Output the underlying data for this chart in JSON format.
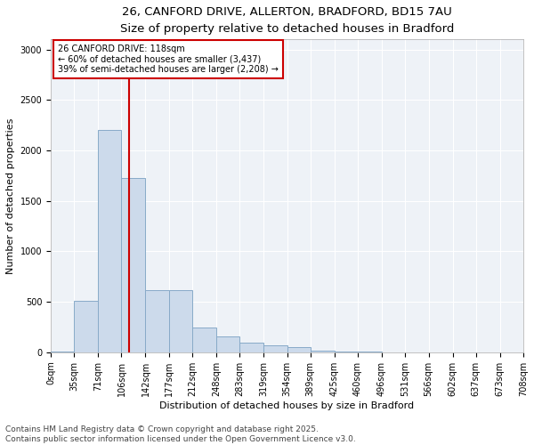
{
  "title_line1": "26, CANFORD DRIVE, ALLERTON, BRADFORD, BD15 7AU",
  "title_line2": "Size of property relative to detached houses in Bradford",
  "xlabel": "Distribution of detached houses by size in Bradford",
  "ylabel": "Number of detached properties",
  "bar_color": "#ccdaeb",
  "bar_edge_color": "#88aac8",
  "bin_edges": [
    0,
    35,
    71,
    106,
    142,
    177,
    212,
    248,
    283,
    319,
    354,
    389,
    425,
    460,
    496,
    531,
    566,
    602,
    637,
    673,
    708
  ],
  "bin_labels": [
    "0sqm",
    "35sqm",
    "71sqm",
    "106sqm",
    "142sqm",
    "177sqm",
    "212sqm",
    "248sqm",
    "283sqm",
    "319sqm",
    "354sqm",
    "389sqm",
    "425sqm",
    "460sqm",
    "496sqm",
    "531sqm",
    "566sqm",
    "602sqm",
    "637sqm",
    "673sqm",
    "708sqm"
  ],
  "counts": [
    5,
    510,
    2200,
    1730,
    620,
    620,
    250,
    160,
    100,
    70,
    50,
    15,
    10,
    5,
    3,
    2,
    1,
    0,
    0,
    0
  ],
  "property_size": 118,
  "property_label": "26 CANFORD DRIVE: 118sqm",
  "annotation_line2": "← 60% of detached houses are smaller (3,437)",
  "annotation_line3": "39% of semi-detached houses are larger (2,208) →",
  "red_line_color": "#cc0000",
  "annotation_box_edge": "#cc0000",
  "ylim": [
    0,
    3100
  ],
  "yticks": [
    0,
    500,
    1000,
    1500,
    2000,
    2500,
    3000
  ],
  "background_color": "#eef2f7",
  "footer_line1": "Contains HM Land Registry data © Crown copyright and database right 2025.",
  "footer_line2": "Contains public sector information licensed under the Open Government Licence v3.0.",
  "title_fontsize": 9.5,
  "subtitle_fontsize": 8.5,
  "axis_label_fontsize": 8,
  "tick_fontsize": 7,
  "annotation_fontsize": 7,
  "footer_fontsize": 6.5
}
